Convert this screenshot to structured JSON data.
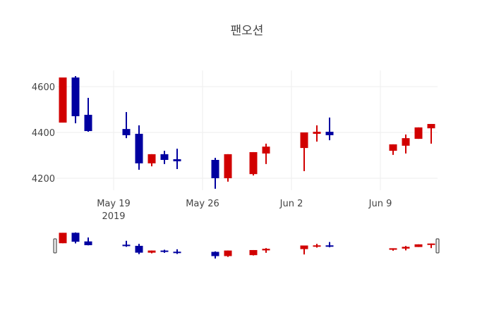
{
  "chart_data": {
    "type": "candlestick",
    "title": "팬오션",
    "xlabel": "",
    "ylabel": "",
    "ylim": [
      4130,
      4670
    ],
    "grid": true,
    "legend": "none",
    "increasing_color": "#d10000",
    "decreasing_color": "#0000a0",
    "y_ticks": [
      4200,
      4400,
      4600
    ],
    "x_ticks": [
      {
        "date": "2019-05-19",
        "label": "May 19",
        "sublabel": "2019"
      },
      {
        "date": "2019-05-26",
        "label": "May 26",
        "sublabel": ""
      },
      {
        "date": "2019-06-02",
        "label": "Jun 2",
        "sublabel": ""
      },
      {
        "date": "2019-06-09",
        "label": "Jun 9",
        "sublabel": ""
      }
    ],
    "x_range": [
      "2019-05-14",
      "2019-06-13"
    ],
    "range_slider": true,
    "candles": [
      {
        "date": "2019-05-15",
        "open": 4443,
        "high": 4640,
        "low": 4443,
        "close": 4640
      },
      {
        "date": "2019-05-16",
        "open": 4640,
        "high": 4646,
        "low": 4440,
        "close": 4471
      },
      {
        "date": "2019-05-17",
        "open": 4477,
        "high": 4551,
        "low": 4403,
        "close": 4406
      },
      {
        "date": "2019-05-20",
        "open": 4415,
        "high": 4489,
        "low": 4375,
        "close": 4388
      },
      {
        "date": "2019-05-21",
        "open": 4394,
        "high": 4431,
        "low": 4237,
        "close": 4265
      },
      {
        "date": "2019-05-22",
        "open": 4265,
        "high": 4305,
        "low": 4252,
        "close": 4305
      },
      {
        "date": "2019-05-23",
        "open": 4305,
        "high": 4320,
        "low": 4262,
        "close": 4280
      },
      {
        "date": "2019-05-24",
        "open": 4283,
        "high": 4329,
        "low": 4240,
        "close": 4274
      },
      {
        "date": "2019-05-27",
        "open": 4280,
        "high": 4289,
        "low": 4154,
        "close": 4200
      },
      {
        "date": "2019-05-28",
        "open": 4200,
        "high": 4305,
        "low": 4185,
        "close": 4305
      },
      {
        "date": "2019-05-30",
        "open": 4218,
        "high": 4314,
        "low": 4212,
        "close": 4314
      },
      {
        "date": "2019-05-31",
        "open": 4308,
        "high": 4351,
        "low": 4262,
        "close": 4338
      },
      {
        "date": "2019-06-03",
        "open": 4332,
        "high": 4400,
        "low": 4231,
        "close": 4400
      },
      {
        "date": "2019-06-04",
        "open": 4394,
        "high": 4431,
        "low": 4360,
        "close": 4403
      },
      {
        "date": "2019-06-05",
        "open": 4403,
        "high": 4465,
        "low": 4366,
        "close": 4388
      },
      {
        "date": "2019-06-10",
        "open": 4320,
        "high": 4348,
        "low": 4302,
        "close": 4348
      },
      {
        "date": "2019-06-11",
        "open": 4342,
        "high": 4391,
        "low": 4308,
        "close": 4375
      },
      {
        "date": "2019-06-12",
        "open": 4372,
        "high": 4422,
        "low": 4372,
        "close": 4422
      },
      {
        "date": "2019-06-13",
        "open": 4418,
        "high": 4437,
        "low": 4351,
        "close": 4437
      }
    ]
  },
  "layout": {
    "gridline_color": "#eeeeee",
    "tick_label_color": "#444444"
  }
}
